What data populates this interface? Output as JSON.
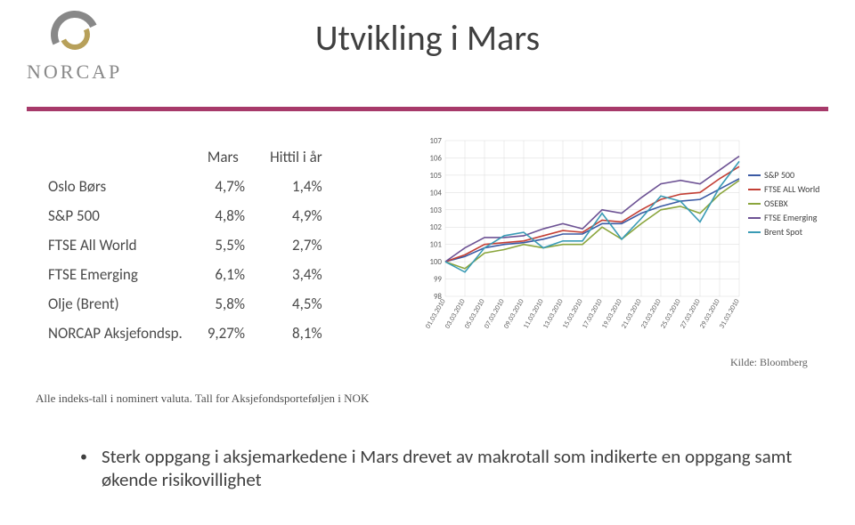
{
  "logo": {
    "text": "NORCAP"
  },
  "title": "Utvikling i Mars",
  "rule_color": "#a73a6a",
  "table": {
    "headers": [
      "",
      "Mars",
      "Hittil i år"
    ],
    "rows": [
      [
        "Oslo Børs",
        "4,7%",
        "1,4%"
      ],
      [
        "S&P 500",
        "4,8%",
        "4,9%"
      ],
      [
        "FTSE All World",
        "5,5%",
        "2,7%"
      ],
      [
        "FTSE Emerging",
        "6,1%",
        "3,4%"
      ],
      [
        "Olje (Brent)",
        "5,8%",
        "4,5%"
      ],
      [
        "NORCAP Aksjefondsp.",
        "9,27%",
        "8,1%"
      ]
    ]
  },
  "chart": {
    "type": "line",
    "background": "#ffffff",
    "grid_color": "#d9d9d9",
    "ylim": [
      98,
      107
    ],
    "ytick_step": 1,
    "xticks": [
      "01.03.2010",
      "03.03.2010",
      "05.03.2010",
      "07.03.2010",
      "09.03.2010",
      "11.03.2010",
      "13.03.2010",
      "15.03.2010",
      "17.03.2010",
      "19.03.2010",
      "21.03.2010",
      "23.03.2010",
      "25.03.2010",
      "27.03.2010",
      "29.03.2010",
      "31.03.2010"
    ],
    "series": [
      {
        "name": "S&P 500",
        "color": "#3b5aa4",
        "values": [
          100,
          100.3,
          100.8,
          101.0,
          101.1,
          101.3,
          101.6,
          101.6,
          102.2,
          102.2,
          102.8,
          103.2,
          103.5,
          103.6,
          104.2,
          104.8
        ]
      },
      {
        "name": "FTSE ALL World",
        "color": "#c33f35",
        "values": [
          100,
          100.4,
          101.0,
          101.1,
          101.2,
          101.5,
          101.8,
          101.7,
          102.4,
          102.3,
          103.0,
          103.6,
          103.9,
          104.0,
          104.8,
          105.5
        ]
      },
      {
        "name": "OSEBX",
        "color": "#8aa53c",
        "values": [
          100,
          99.6,
          100.5,
          100.7,
          101.0,
          100.8,
          101.0,
          101.0,
          102.0,
          101.3,
          102.2,
          103.0,
          103.2,
          102.8,
          103.9,
          104.7
        ]
      },
      {
        "name": "FTSE Emerging",
        "color": "#6d5294",
        "values": [
          100,
          100.8,
          101.4,
          101.4,
          101.5,
          101.9,
          102.2,
          101.9,
          103.0,
          102.8,
          103.7,
          104.5,
          104.7,
          104.5,
          105.3,
          106.1
        ]
      },
      {
        "name": "Brent Spot",
        "color": "#3a9bb5",
        "values": [
          100,
          99.4,
          100.8,
          101.5,
          101.7,
          100.8,
          101.2,
          101.2,
          102.8,
          101.3,
          102.5,
          103.8,
          103.5,
          102.3,
          104.3,
          105.8
        ]
      }
    ]
  },
  "source": "Kilde: Bloomberg",
  "footnote": "Alle indeks-tall i nominert valuta. Tall for Aksjefondsporteføljen i NOK",
  "bullet": "Sterk oppgang i aksjemarkedene i Mars drevet av makrotall som indikerte en oppgang samt økende risikovillighet"
}
